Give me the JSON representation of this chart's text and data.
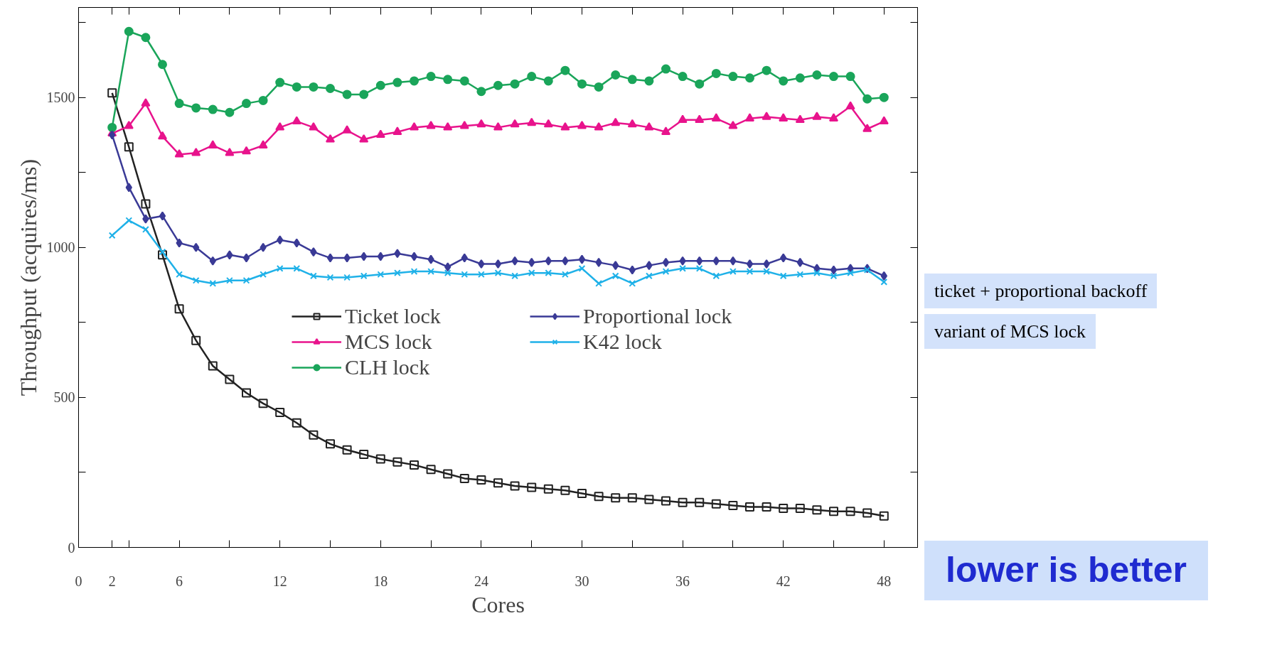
{
  "chart_data": {
    "type": "line",
    "xlabel": "Cores",
    "ylabel": "Throughput (acquires/ms)",
    "x": [
      2,
      3,
      4,
      5,
      6,
      7,
      8,
      9,
      10,
      11,
      12,
      13,
      14,
      15,
      16,
      17,
      18,
      19,
      20,
      21,
      22,
      23,
      24,
      25,
      26,
      27,
      28,
      29,
      30,
      31,
      32,
      33,
      34,
      35,
      36,
      37,
      38,
      39,
      40,
      41,
      42,
      43,
      44,
      45,
      46,
      47,
      48
    ],
    "xlim": [
      0,
      50
    ],
    "xticks": [
      0,
      2,
      {
        "value": 3,
        "label": null
      },
      6,
      {
        "value": 9,
        "label": null
      },
      12,
      {
        "value": 15,
        "label": null
      },
      18,
      {
        "value": 21,
        "label": null
      },
      24,
      {
        "value": 27,
        "label": null
      },
      30,
      {
        "value": 33,
        "label": null
      },
      36,
      {
        "value": 39,
        "label": null
      },
      42,
      {
        "value": 45,
        "label": null
      },
      48
    ],
    "ylim": [
      0,
      1800
    ],
    "yticks": [
      0,
      {
        "value": 250,
        "label": null
      },
      500,
      {
        "value": 750,
        "label": null
      },
      1000,
      {
        "value": 1250,
        "label": null
      },
      1500,
      {
        "value": 1750,
        "label": null
      }
    ],
    "grid": false,
    "legend": "center",
    "line_style": "solid",
    "series": [
      {
        "name": "Ticket lock",
        "color": "#222222",
        "marker": "square",
        "values": [
          1515,
          1335,
          1145,
          975,
          795,
          690,
          605,
          560,
          515,
          480,
          450,
          415,
          375,
          345,
          325,
          310,
          295,
          285,
          275,
          260,
          245,
          230,
          225,
          215,
          205,
          200,
          195,
          190,
          180,
          170,
          165,
          165,
          160,
          155,
          150,
          150,
          145,
          140,
          135,
          135,
          130,
          130,
          125,
          120,
          120,
          115,
          105
        ]
      },
      {
        "name": "MCS lock",
        "color": "#e8138c",
        "marker": "triangle",
        "values": [
          1380,
          1405,
          1480,
          1370,
          1310,
          1315,
          1340,
          1315,
          1320,
          1340,
          1400,
          1420,
          1400,
          1360,
          1390,
          1360,
          1375,
          1385,
          1400,
          1405,
          1400,
          1405,
          1410,
          1400,
          1410,
          1415,
          1410,
          1400,
          1405,
          1400,
          1415,
          1410,
          1400,
          1385,
          1425,
          1425,
          1430,
          1405,
          1430,
          1435,
          1430,
          1425,
          1435,
          1430,
          1470,
          1395,
          1420
        ]
      },
      {
        "name": "CLH lock",
        "color": "#1aa55a",
        "marker": "circle",
        "values": [
          1400,
          1720,
          1700,
          1610,
          1480,
          1465,
          1460,
          1450,
          1480,
          1490,
          1550,
          1535,
          1535,
          1530,
          1510,
          1510,
          1540,
          1550,
          1555,
          1570,
          1560,
          1555,
          1520,
          1540,
          1545,
          1570,
          1555,
          1590,
          1545,
          1535,
          1575,
          1560,
          1555,
          1595,
          1570,
          1545,
          1580,
          1570,
          1565,
          1590,
          1555,
          1565,
          1575,
          1570,
          1570,
          1495,
          1500
        ]
      },
      {
        "name": "Proportional lock",
        "color": "#3a3a96",
        "marker": "diamond",
        "values": [
          1375,
          1200,
          1095,
          1105,
          1015,
          1000,
          955,
          975,
          965,
          1000,
          1025,
          1015,
          985,
          965,
          965,
          970,
          970,
          980,
          970,
          960,
          935,
          965,
          945,
          945,
          955,
          950,
          955,
          955,
          960,
          950,
          940,
          925,
          940,
          950,
          955,
          955,
          955,
          955,
          945,
          945,
          965,
          950,
          930,
          925,
          930,
          930,
          905
        ]
      },
      {
        "name": "K42 lock",
        "color": "#1fb1e8",
        "marker": "cross",
        "values": [
          1040,
          1090,
          1060,
          985,
          910,
          890,
          880,
          890,
          890,
          910,
          930,
          930,
          905,
          900,
          900,
          905,
          910,
          915,
          920,
          920,
          915,
          910,
          910,
          915,
          905,
          915,
          915,
          910,
          930,
          880,
          905,
          880,
          905,
          920,
          930,
          930,
          905,
          920,
          920,
          920,
          905,
          910,
          915,
          905,
          915,
          925,
          885
        ]
      }
    ],
    "annotations": [
      "ticket + proportional backoff",
      "variant of MCS lock",
      "lower is better"
    ]
  }
}
